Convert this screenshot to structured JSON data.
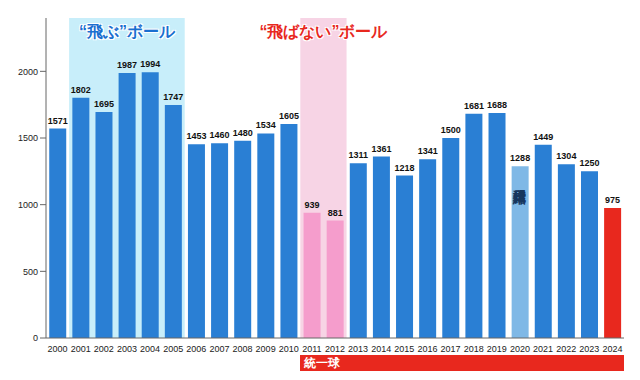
{
  "chart_data": {
    "type": "bar",
    "categories": [
      "2000",
      "2001",
      "2002",
      "2003",
      "2004",
      "2005",
      "2006",
      "2007",
      "2008",
      "2009",
      "2010",
      "2011",
      "2012",
      "2013",
      "2014",
      "2015",
      "2016",
      "2017",
      "2018",
      "2019",
      "2020",
      "2021",
      "2022",
      "2023",
      "2024"
    ],
    "values": [
      1571,
      1802,
      1695,
      1987,
      1994,
      1747,
      1453,
      1460,
      1480,
      1534,
      1605,
      939,
      881,
      1311,
      1361,
      1218,
      1341,
      1500,
      1681,
      1688,
      1288,
      1449,
      1304,
      1250,
      975
    ],
    "colors": [
      "#2a7fd4",
      "#2a7fd4",
      "#2a7fd4",
      "#2a7fd4",
      "#2a7fd4",
      "#2a7fd4",
      "#2a7fd4",
      "#2a7fd4",
      "#2a7fd4",
      "#2a7fd4",
      "#2a7fd4",
      "#f59dcc",
      "#f59dcc",
      "#2a7fd4",
      "#2a7fd4",
      "#2a7fd4",
      "#2a7fd4",
      "#2a7fd4",
      "#2a7fd4",
      "#2a7fd4",
      "#7fb8e6",
      "#2a7fd4",
      "#2a7fd4",
      "#2a7fd4",
      "#e8281e"
    ],
    "ylim": [
      0,
      2400
    ],
    "yticks": [
      0,
      500,
      1000,
      1500,
      2000
    ],
    "grid": false,
    "data_labels": true,
    "annotations": [
      {
        "text": "“飛ぶ”ボール",
        "from": "2001",
        "to": "2005"
      },
      {
        "text": "“飛ばない”ボール",
        "from": "2011",
        "to": "2012"
      },
      {
        "text": "短縮日程",
        "from": "2020",
        "to": "2020"
      },
      {
        "text": "統一球",
        "from": "2011",
        "to": "2024"
      }
    ]
  }
}
